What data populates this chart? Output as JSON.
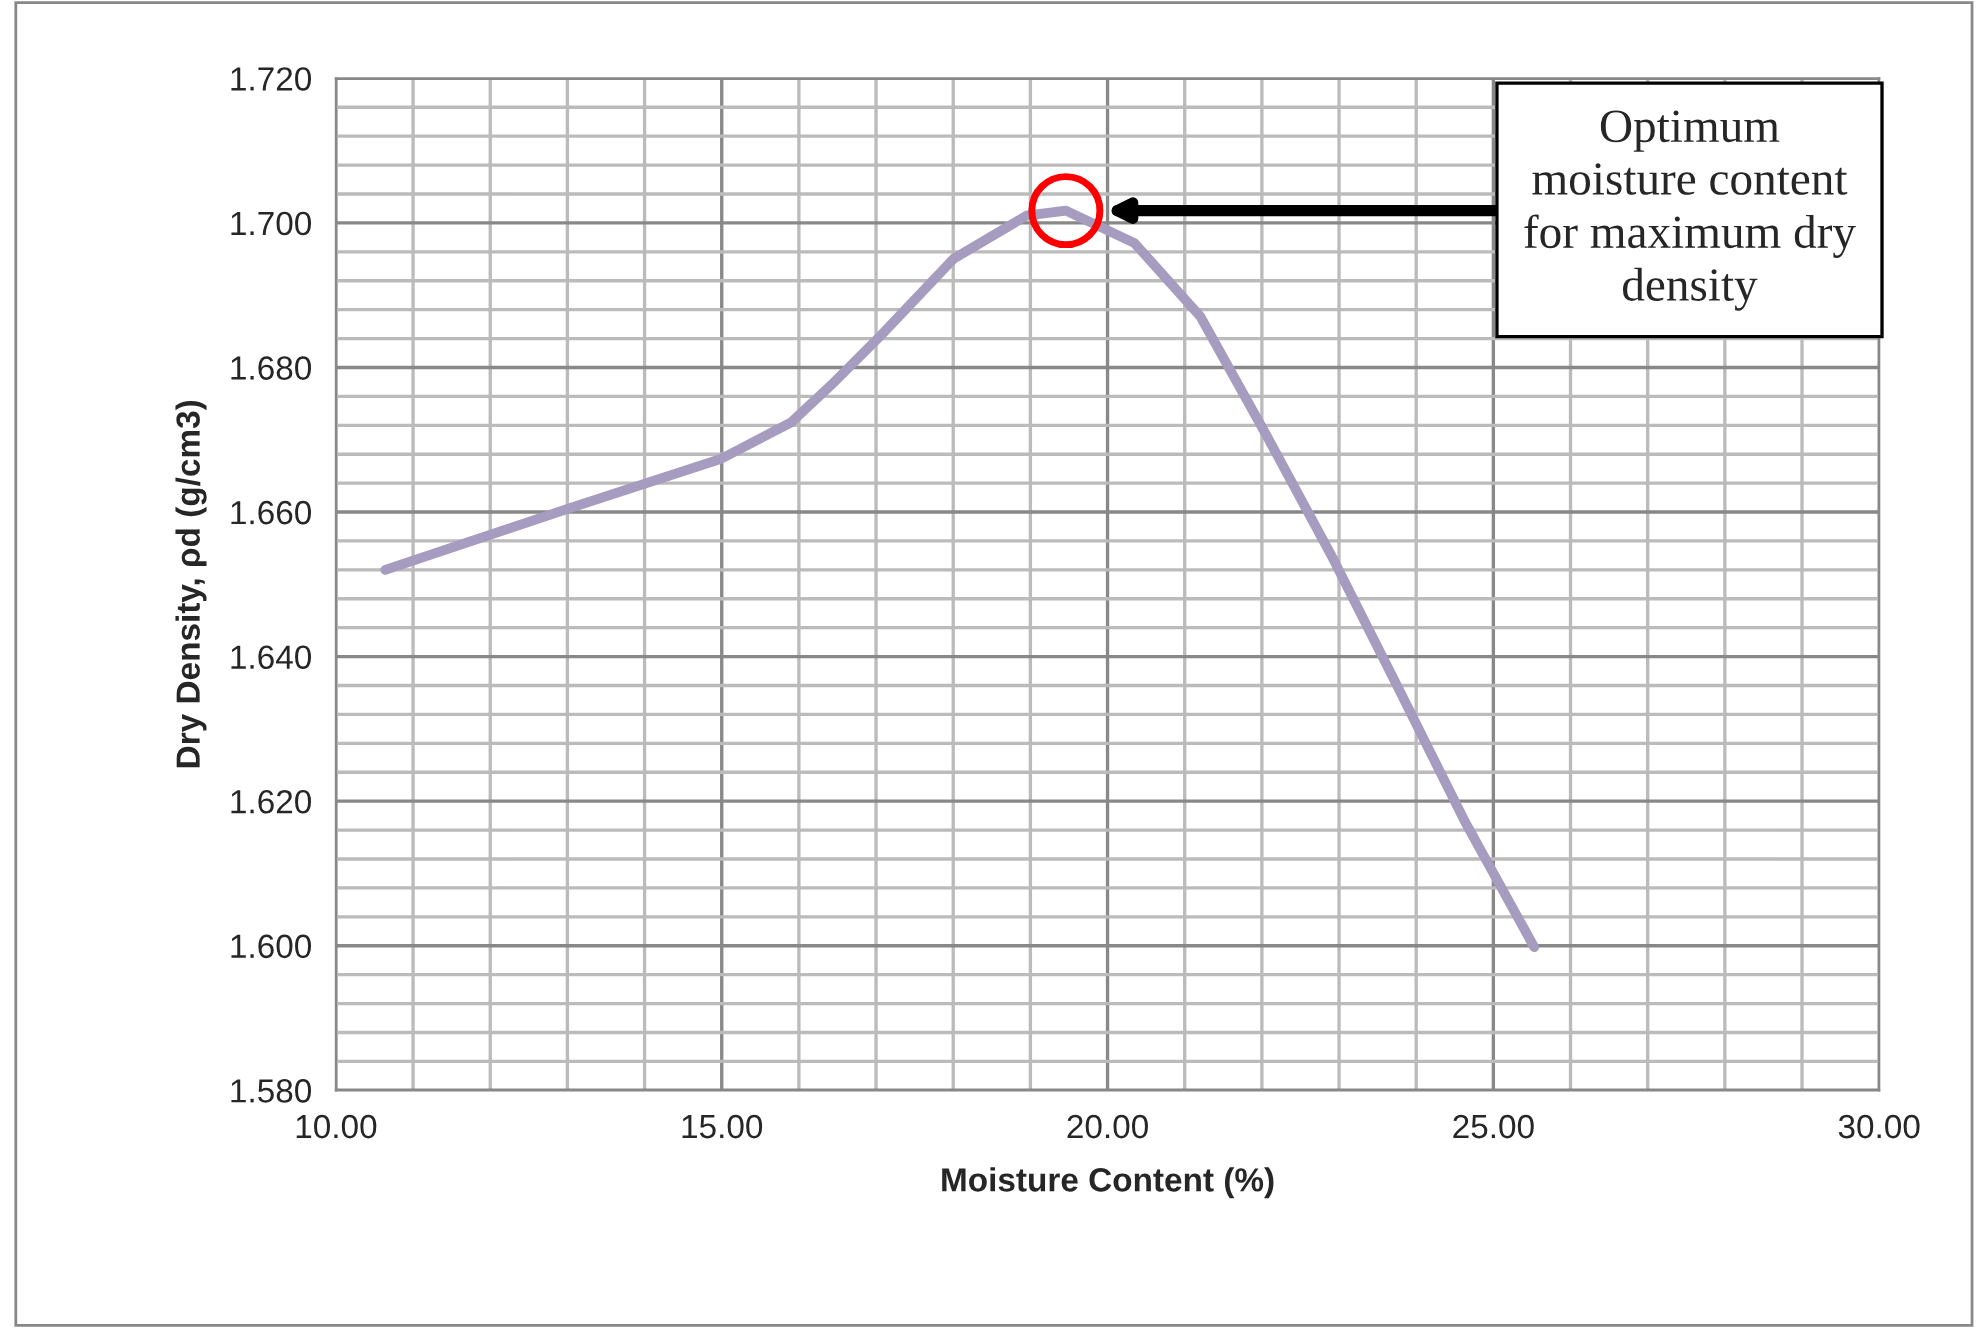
{
  "chart_data": {
    "type": "line",
    "xlabel": "Moisture Content (%)",
    "ylabel": "Dry Density, ρd (g/cm3)",
    "x": [
      10.64,
      13.02,
      15.0,
      15.9,
      16.46,
      17.06,
      18.0,
      18.95,
      19.46,
      20.35,
      21.2,
      22.06,
      22.9,
      23.77,
      24.63,
      25.53
    ],
    "series": [
      {
        "color": "#a59cc0",
        "values": [
          1.652,
          1.6605,
          1.6674,
          1.6724,
          1.678,
          1.6844,
          1.695,
          1.701,
          1.7017,
          1.6972,
          1.6871,
          1.6706,
          1.654,
          1.6356,
          1.6172,
          1.5998
        ]
      }
    ],
    "xlim": [
      10,
      30
    ],
    "xticks": [
      {
        "value": 10,
        "label": "10.00"
      },
      {
        "value": 15,
        "label": "15.00"
      },
      {
        "value": 20,
        "label": "20.00"
      },
      {
        "value": 25,
        "label": "25.00"
      },
      {
        "value": 30,
        "label": "30.00"
      }
    ],
    "ylim": [
      1.58,
      1.72
    ],
    "yticks": [
      {
        "value": 1.58,
        "label": "1.580"
      },
      {
        "value": 1.6,
        "label": "1.600"
      },
      {
        "value": 1.62,
        "label": "1.620"
      },
      {
        "value": 1.64,
        "label": "1.640"
      },
      {
        "value": 1.66,
        "label": "1.660"
      },
      {
        "value": 1.68,
        "label": "1.680"
      },
      {
        "value": 1.7,
        "label": "1.700"
      },
      {
        "value": 1.72,
        "label": "1.720"
      }
    ],
    "grid": true,
    "marker": "none",
    "line_style": "solid",
    "legend": false,
    "annotations": [
      "Optimum\nmoisture content\nfor maximum dry\ndensity"
    ]
  }
}
